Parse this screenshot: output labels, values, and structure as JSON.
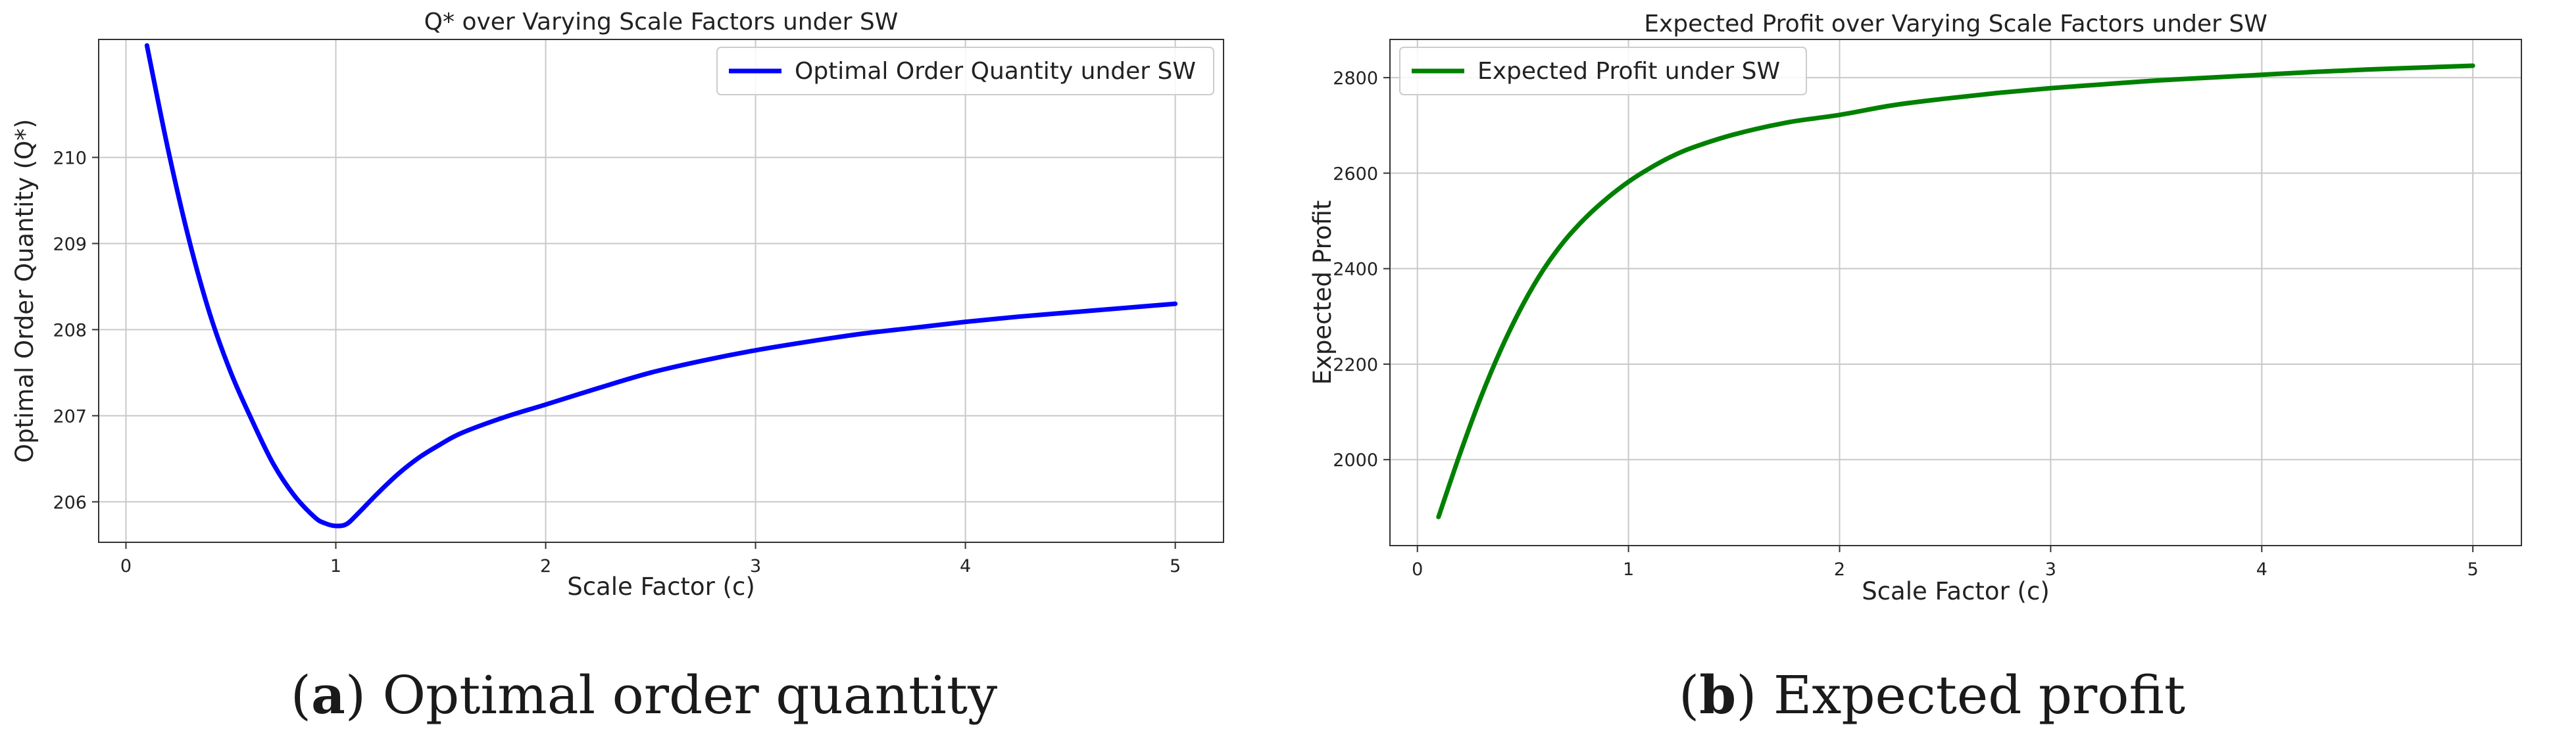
{
  "panels": [
    {
      "caption": {
        "letter": "a",
        "text": "Optimal order quantity"
      }
    },
    {
      "caption": {
        "letter": "b",
        "text": "Expected profit"
      }
    }
  ],
  "chart_data": [
    {
      "type": "line",
      "title": "Q* over Varying Scale Factors under SW",
      "xlabel": "Scale Factor (c)",
      "ylabel": "Optimal Order Quantity (Q*)",
      "xlim": [
        -0.13,
        5.23
      ],
      "ylim": [
        205.53,
        211.37
      ],
      "xticks": [
        0,
        1,
        2,
        3,
        4,
        5
      ],
      "xtick_labels": [
        "0",
        "1",
        "2",
        "3",
        "4",
        "5"
      ],
      "yticks": [
        206,
        207,
        208,
        209,
        210
      ],
      "ytick_labels": [
        "206",
        "207",
        "208",
        "209",
        "210"
      ],
      "grid": true,
      "legend_position": "top-right",
      "series": [
        {
          "name": "Optimal Order Quantity under SW",
          "color": "#0000ff",
          "x": [
            0.1,
            0.2,
            0.3,
            0.4,
            0.5,
            0.6,
            0.7,
            0.8,
            0.9,
            0.95,
            1.0,
            1.05,
            1.1,
            1.2,
            1.3,
            1.4,
            1.5,
            1.6,
            1.8,
            2.0,
            2.25,
            2.5,
            2.75,
            3.0,
            3.25,
            3.5,
            3.75,
            4.0,
            4.25,
            4.5,
            4.75,
            5.0
          ],
          "y": [
            211.3,
            210.1,
            209.05,
            208.18,
            207.5,
            206.95,
            206.45,
            206.08,
            205.82,
            205.75,
            205.72,
            205.74,
            205.85,
            206.1,
            206.33,
            206.52,
            206.67,
            206.8,
            206.98,
            207.13,
            207.32,
            207.5,
            207.64,
            207.76,
            207.86,
            207.95,
            208.02,
            208.09,
            208.15,
            208.2,
            208.25,
            208.3
          ]
        }
      ]
    },
    {
      "type": "line",
      "title": "Expected Profit over Varying Scale Factors under SW",
      "xlabel": "Scale Factor (c)",
      "ylabel": "Expected Profit",
      "xlim": [
        -0.13,
        5.23
      ],
      "ylim": [
        1820,
        2880
      ],
      "xticks": [
        0,
        1,
        2,
        3,
        4,
        5
      ],
      "xtick_labels": [
        "0",
        "1",
        "2",
        "3",
        "4",
        "5"
      ],
      "yticks": [
        2000,
        2200,
        2400,
        2600,
        2800
      ],
      "ytick_labels": [
        "2000",
        "2200",
        "2400",
        "2600",
        "2800"
      ],
      "grid": true,
      "legend_position": "top-left",
      "series": [
        {
          "name": "Expected Profit under SW",
          "color": "#008000",
          "x": [
            0.1,
            0.2,
            0.3,
            0.4,
            0.5,
            0.6,
            0.7,
            0.8,
            0.9,
            1.0,
            1.1,
            1.2,
            1.3,
            1.5,
            1.75,
            2.0,
            2.25,
            2.5,
            2.75,
            3.0,
            3.25,
            3.5,
            3.75,
            4.0,
            4.25,
            4.5,
            4.75,
            5.0
          ],
          "y": [
            1880,
            2010,
            2130,
            2235,
            2325,
            2400,
            2460,
            2508,
            2548,
            2582,
            2610,
            2634,
            2653,
            2681,
            2706,
            2722,
            2742,
            2756,
            2768,
            2778,
            2786,
            2794,
            2800,
            2806,
            2812,
            2817,
            2821,
            2825
          ]
        }
      ]
    }
  ]
}
